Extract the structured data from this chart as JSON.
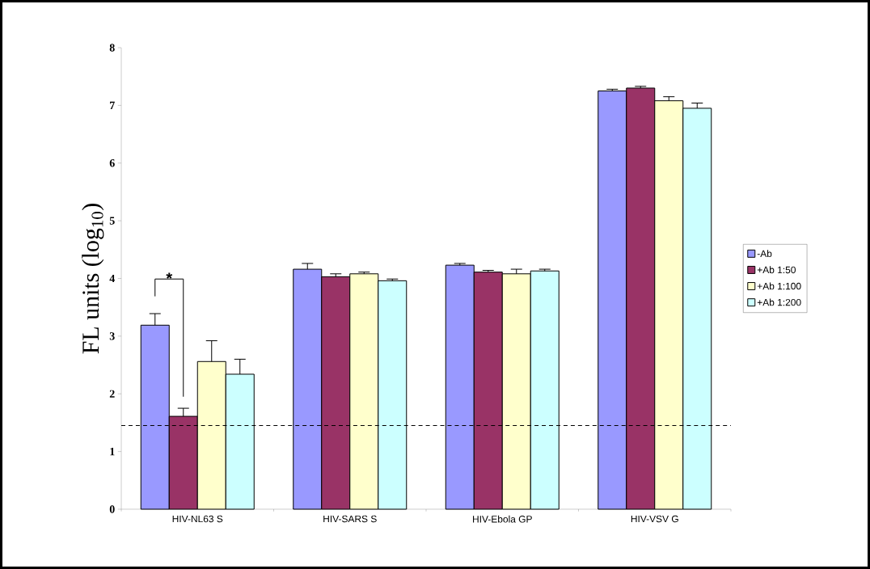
{
  "chart_data": {
    "type": "bar",
    "ylabel": "FL units (log$_{10}$)",
    "categories": [
      "HIV-NL63 S",
      "HIV-SARS S",
      "HIV-Ebola GP",
      "HIV-VSV G"
    ],
    "series": [
      {
        "name": "-Ab",
        "color": "#9999ff",
        "values": [
          3.19,
          4.16,
          4.23,
          7.25
        ],
        "errors": [
          0.2,
          0.1,
          0.03,
          0.03
        ]
      },
      {
        "name": "+Ab 1:50",
        "color": "#993366",
        "values": [
          1.61,
          4.03,
          4.11,
          7.3
        ],
        "errors": [
          0.14,
          0.05,
          0.03,
          0.03
        ]
      },
      {
        "name": "+Ab 1:100",
        "color": "#ffffcc",
        "values": [
          2.56,
          4.08,
          4.08,
          7.08
        ],
        "errors": [
          0.36,
          0.03,
          0.08,
          0.07
        ]
      },
      {
        "name": "+Ab 1:200",
        "color": "#ccffff",
        "values": [
          2.34,
          3.96,
          4.13,
          6.95
        ],
        "errors": [
          0.26,
          0.03,
          0.03,
          0.09
        ]
      }
    ],
    "ylim": [
      0,
      8
    ],
    "yticks": [
      0,
      1,
      2,
      3,
      4,
      5,
      6,
      7,
      8
    ],
    "ref_lines": [
      {
        "axis": "y",
        "value": 1.45,
        "line_style": "dashed",
        "color": "#000000"
      }
    ],
    "annotations": [
      "*"
    ],
    "grid": false,
    "legend": "right"
  }
}
